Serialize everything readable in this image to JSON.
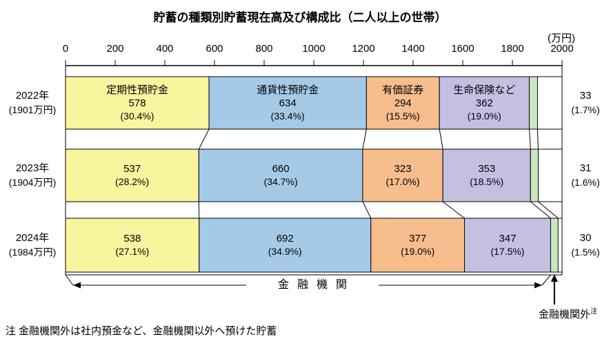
{
  "title": "貯蓄の種類別貯蓄現在高及び構成比（二人以上の世帯）",
  "unit_label": "(万円)",
  "bracket_label": "金融機関",
  "outside_label": "金融機関外",
  "note_marker": "注",
  "note": "注 金融機関外は社内預金など、金融機関以外へ預けた貯蓄",
  "chart_data": {
    "type": "bar",
    "variant": "horizontal-stacked",
    "unit": "万円",
    "grid": false,
    "legend_position": "none",
    "axis": {
      "min": 0,
      "max": 2000,
      "tick_step": 200,
      "ticks": [
        0,
        200,
        400,
        600,
        800,
        1000,
        1200,
        1400,
        1600,
        1800,
        2000
      ]
    },
    "categories": [
      "定期性預貯金",
      "通貨性預貯金",
      "有価証券",
      "生命保険など",
      "金融機関外"
    ],
    "colors": [
      "#F9F49E",
      "#A5CAE8",
      "#F5BE8C",
      "#C5BFE2",
      "#CBE7C2"
    ],
    "rows": [
      {
        "year_label": "2022年",
        "total_label": "(1901万円)",
        "total": 1901,
        "values": [
          578,
          634,
          294,
          362,
          33
        ],
        "pcts": [
          "(30.4%)",
          "(33.4%)",
          "(15.5%)",
          "(19.0%)",
          "(1.7%)"
        ]
      },
      {
        "year_label": "2023年",
        "total_label": "(1904万円)",
        "total": 1904,
        "values": [
          537,
          660,
          323,
          353,
          31
        ],
        "pcts": [
          "(28.2%)",
          "(34.7%)",
          "(17.0%)",
          "(18.5%)",
          "(1.6%)"
        ]
      },
      {
        "year_label": "2024年",
        "total_label": "(1984万円)",
        "total": 1984,
        "values": [
          538,
          692,
          377,
          347,
          30
        ],
        "pcts": [
          "(27.1%)",
          "(34.9%)",
          "(19.0%)",
          "(17.5%)",
          "(1.5%)"
        ]
      }
    ]
  }
}
